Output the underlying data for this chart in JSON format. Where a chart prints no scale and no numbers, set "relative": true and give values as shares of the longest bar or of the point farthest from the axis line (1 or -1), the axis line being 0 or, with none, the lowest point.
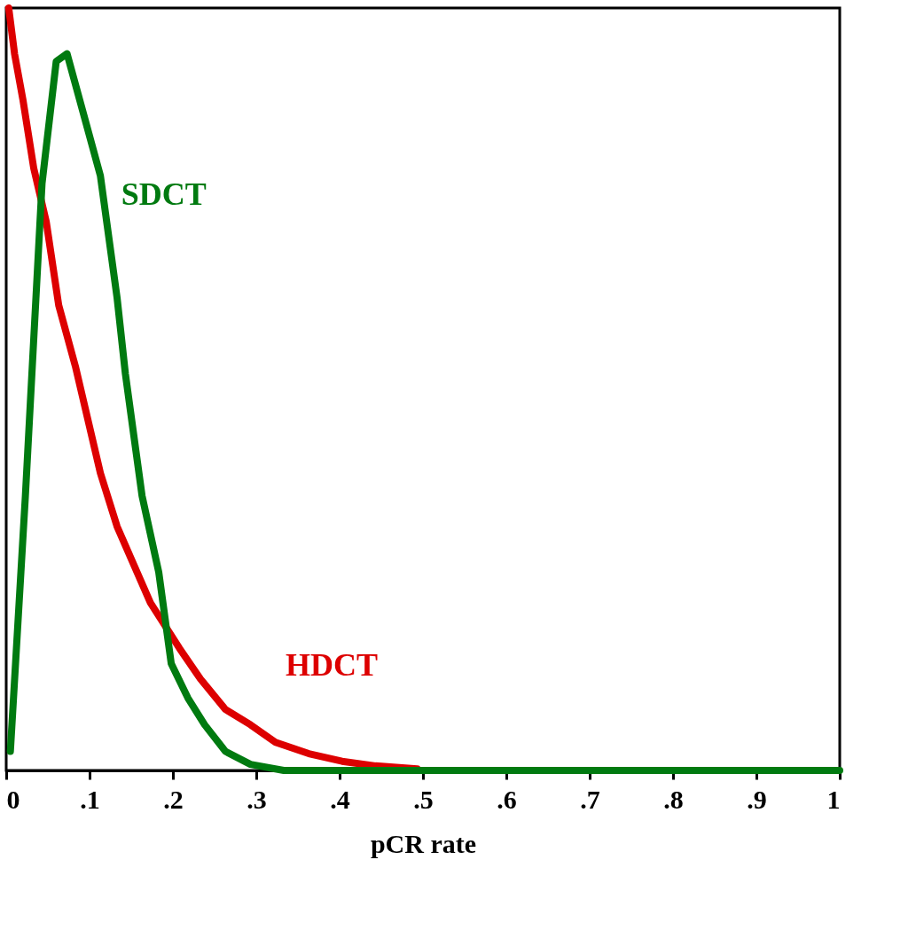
{
  "chart_data": {
    "type": "line",
    "xlabel": "pCR rate",
    "relative": true,
    "grid": false,
    "line_style": "solid",
    "marker": "none",
    "xlim": [
      0,
      1
    ],
    "xticks": [
      0,
      {
        "value": 0.1,
        "label": ".1"
      },
      {
        "value": 0.2,
        "label": ".2"
      },
      {
        "value": 0.3,
        "label": ".3"
      },
      {
        "value": 0.4,
        "label": ".4"
      },
      {
        "value": 0.5,
        "label": ".5"
      },
      {
        "value": 0.6,
        "label": ".6"
      },
      {
        "value": 0.7,
        "label": ".7"
      },
      {
        "value": 0.8,
        "label": ".8"
      },
      {
        "value": 0.9,
        "label": ".9"
      },
      1
    ],
    "series": [
      {
        "name": "HDCT",
        "color": "#dd0000",
        "x": [
          0.003,
          0.01,
          0.02,
          0.033,
          0.048,
          0.063,
          0.083,
          0.113,
          0.133,
          0.153,
          0.173,
          0.208,
          0.233,
          0.263,
          0.293,
          0.323,
          0.363,
          0.403,
          0.443,
          0.493
        ],
        "values": [
          1.0,
          0.94,
          0.88,
          0.79,
          0.72,
          0.61,
          0.53,
          0.39,
          0.32,
          0.27,
          0.22,
          0.16,
          0.12,
          0.08,
          0.06,
          0.037,
          0.022,
          0.012,
          0.006,
          0.002
        ]
      },
      {
        "name": "SDCT",
        "color": "#007a10",
        "x": [
          0.005,
          0.023,
          0.043,
          0.06,
          0.073,
          0.093,
          0.113,
          0.123,
          0.133,
          0.143,
          0.153,
          0.163,
          0.183,
          0.198,
          0.218,
          0.238,
          0.263,
          0.293,
          0.333,
          1.0
        ],
        "values": [
          0.025,
          0.36,
          0.77,
          0.93,
          0.94,
          0.86,
          0.78,
          0.7,
          0.62,
          0.52,
          0.44,
          0.36,
          0.26,
          0.14,
          0.095,
          0.06,
          0.025,
          0.008,
          0,
          0
        ]
      }
    ]
  }
}
